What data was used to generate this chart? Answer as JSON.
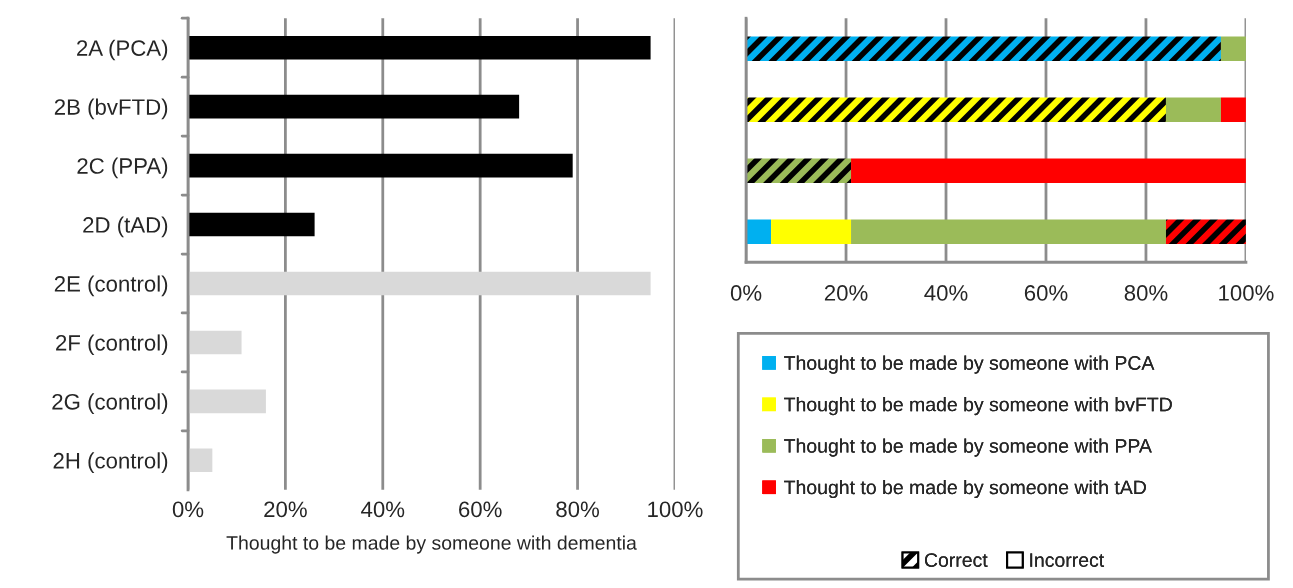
{
  "chart_data": [
    {
      "type": "bar",
      "orientation": "horizontal",
      "xlabel": "Thought to be made by someone with dementia",
      "categories": [
        "2A (PCA)",
        "2B (bvFTD)",
        "2C (PPA)",
        "2D (tAD)",
        "2E (control)",
        "2F (control)",
        "2G (control)",
        "2H (control)"
      ],
      "values": [
        95,
        68,
        79,
        26,
        95,
        11,
        16,
        5
      ],
      "colors": [
        "#000000",
        "#000000",
        "#000000",
        "#000000",
        "#d9d9d9",
        "#d9d9d9",
        "#d9d9d9",
        "#d9d9d9"
      ],
      "xlim": [
        0,
        100
      ],
      "xticks": [
        {
          "value": 0,
          "label": "0%"
        },
        {
          "value": 20,
          "label": "20%"
        },
        {
          "value": 40,
          "label": "40%"
        },
        {
          "value": 60,
          "label": "60%"
        },
        {
          "value": 80,
          "label": "80%"
        },
        {
          "value": 100,
          "label": "100%"
        }
      ],
      "grid": "x",
      "legend": false
    },
    {
      "type": "bar",
      "orientation": "horizontal",
      "stacked": true,
      "categories": [
        null,
        null,
        null,
        null
      ],
      "series": [
        {
          "name": "Thought to be made by someone with PCA",
          "color": "#00b0f0",
          "values": [
            95,
            0,
            0,
            5
          ]
        },
        {
          "name": "Thought to be made by someone with bvFTD",
          "color": "#ffff00",
          "values": [
            0,
            84,
            0,
            16
          ]
        },
        {
          "name": "Thought to be made by someone with PPA",
          "color": "#9bbb59",
          "values": [
            5,
            11,
            21,
            63
          ]
        },
        {
          "name": "Thought to be made by someone with tAD",
          "color": "#ff0000",
          "values": [
            0,
            5,
            79,
            16
          ]
        }
      ],
      "annotations": [
        "Correct",
        "Incorrect"
      ],
      "xlim": [
        0,
        100
      ],
      "xticks": [
        {
          "value": 0,
          "label": "0%"
        },
        {
          "value": 20,
          "label": "20%"
        },
        {
          "value": 40,
          "label": "40%"
        },
        {
          "value": 60,
          "label": "60%"
        },
        {
          "value": 80,
          "label": "80%"
        },
        {
          "value": 100,
          "label": "100%"
        }
      ],
      "grid": "x",
      "legend": "bottom"
    }
  ]
}
